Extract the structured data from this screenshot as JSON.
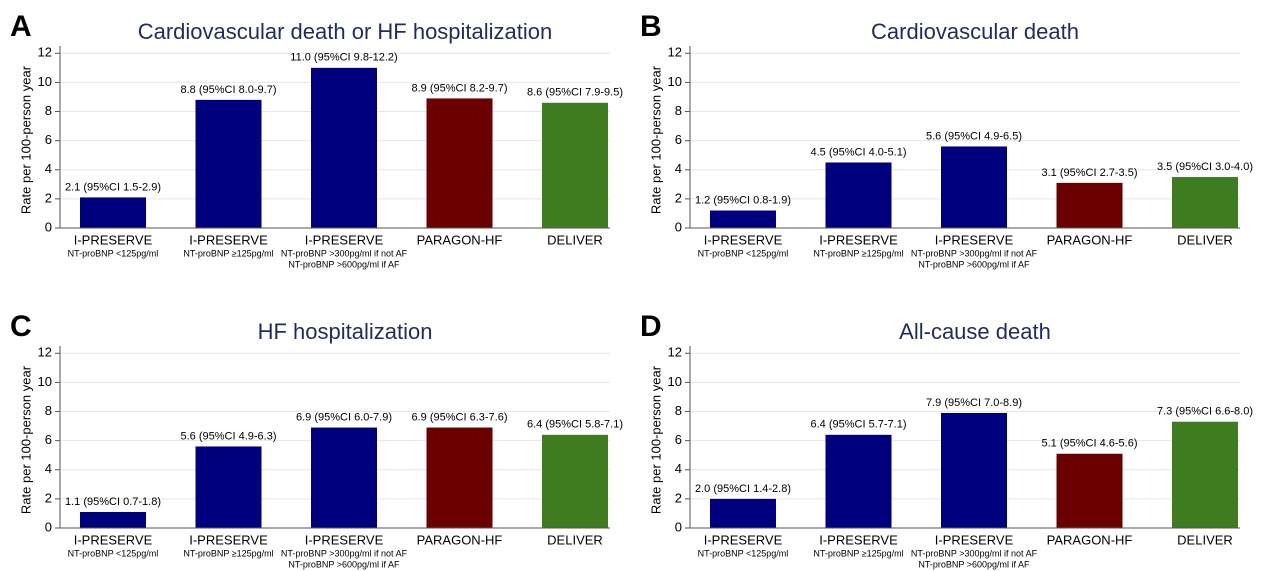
{
  "chart_data": [
    {
      "type": "bar",
      "panel_label": "A",
      "title": "Cardiovascular death or HF hospitalization",
      "y_label": "Rate per 100-person year",
      "categories": [
        "I-PRESERVE",
        "I-PRESERVE",
        "I-PRESERVE",
        "PARAGON-HF",
        "DELIVER"
      ],
      "category_sublabels": [
        [
          "NT-proBNP <125pg/ml"
        ],
        [
          "NT-proBNP ≥125pg/ml"
        ],
        [
          "NT-proBNP >300pg/ml if not AF",
          "NT-proBNP >600pg/ml if AF"
        ],
        [],
        []
      ],
      "values": [
        2.1,
        8.8,
        11.0,
        8.9,
        8.6
      ],
      "value_labels": [
        "2.1 (95%CI 1.5-2.9)",
        "8.8 (95%CI 8.0-9.7)",
        "11.0 (95%CI 9.8-12.2)",
        "8.9 (95%CI 8.2-9.7)",
        "8.6 (95%CI 7.9-9.5)"
      ],
      "colors": [
        "#00007f",
        "#00007f",
        "#00007f",
        "#6b0000",
        "#3e7c1f"
      ],
      "ylim": [
        0,
        12.5
      ],
      "yticks": [
        0,
        2,
        4,
        6,
        8,
        10,
        12
      ],
      "grid": true
    },
    {
      "type": "bar",
      "panel_label": "B",
      "title": "Cardiovascular death",
      "y_label": "Rate per 100-person year",
      "categories": [
        "I-PRESERVE",
        "I-PRESERVE",
        "I-PRESERVE",
        "PARAGON-HF",
        "DELIVER"
      ],
      "category_sublabels": [
        [
          "NT-proBNP <125pg/ml"
        ],
        [
          "NT-proBNP ≥125pg/ml"
        ],
        [
          "NT-proBNP >300pg/ml if not AF",
          "NT-proBNP >600pg/ml if AF"
        ],
        [],
        []
      ],
      "values": [
        1.2,
        4.5,
        5.6,
        3.1,
        3.5
      ],
      "value_labels": [
        "1.2 (95%CI 0.8-1.9)",
        "4.5 (95%CI 4.0-5.1)",
        "5.6 (95%CI 4.9-6.5)",
        "3.1 (95%CI 2.7-3.5)",
        "3.5 (95%CI 3.0-4.0)"
      ],
      "colors": [
        "#00007f",
        "#00007f",
        "#00007f",
        "#6b0000",
        "#3e7c1f"
      ],
      "ylim": [
        0,
        12.5
      ],
      "yticks": [
        0,
        2,
        4,
        6,
        8,
        10,
        12
      ],
      "grid": true
    },
    {
      "type": "bar",
      "panel_label": "C",
      "title": "HF hospitalization",
      "y_label": "Rate per 100-person year",
      "categories": [
        "I-PRESERVE",
        "I-PRESERVE",
        "I-PRESERVE",
        "PARAGON-HF",
        "DELIVER"
      ],
      "category_sublabels": [
        [
          "NT-proBNP <125pg/ml"
        ],
        [
          "NT-proBNP ≥125pg/ml"
        ],
        [
          "NT-proBNP >300pg/ml if not AF",
          "NT-proBNP >600pg/ml if AF"
        ],
        [],
        []
      ],
      "values": [
        1.1,
        5.6,
        6.9,
        6.9,
        6.4
      ],
      "value_labels": [
        "1.1 (95%CI 0.7-1.8)",
        "5.6 (95%CI 4.9-6.3)",
        "6.9 (95%CI 6.0-7.9)",
        "6.9 (95%CI 6.3-7.6)",
        "6.4 (95%CI 5.8-7.1)"
      ],
      "colors": [
        "#00007f",
        "#00007f",
        "#00007f",
        "#6b0000",
        "#3e7c1f"
      ],
      "ylim": [
        0,
        12.5
      ],
      "yticks": [
        0,
        2,
        4,
        6,
        8,
        10,
        12
      ],
      "grid": true
    },
    {
      "type": "bar",
      "panel_label": "D",
      "title": "All-cause death",
      "y_label": "Rate per 100-person year",
      "categories": [
        "I-PRESERVE",
        "I-PRESERVE",
        "I-PRESERVE",
        "PARAGON-HF",
        "DELIVER"
      ],
      "category_sublabels": [
        [
          "NT-proBNP <125pg/ml"
        ],
        [
          "NT-proBNP ≥125pg/ml"
        ],
        [
          "NT-proBNP >300pg/ml if not AF",
          "NT-proBNP >600pg/ml if AF"
        ],
        [],
        []
      ],
      "values": [
        2.0,
        6.4,
        7.9,
        5.1,
        7.3
      ],
      "value_labels": [
        "2.0 (95%CI 1.4-2.8)",
        "6.4 (95%CI 5.7-7.1)",
        "7.9 (95%CI 7.0-8.9)",
        "5.1 (95%CI 4.6-5.6)",
        "7.3 (95%CI 6.6-8.0)"
      ],
      "colors": [
        "#00007f",
        "#00007f",
        "#00007f",
        "#6b0000",
        "#3e7c1f"
      ],
      "ylim": [
        0,
        12.5
      ],
      "yticks": [
        0,
        2,
        4,
        6,
        8,
        10,
        12
      ],
      "grid": true
    }
  ]
}
